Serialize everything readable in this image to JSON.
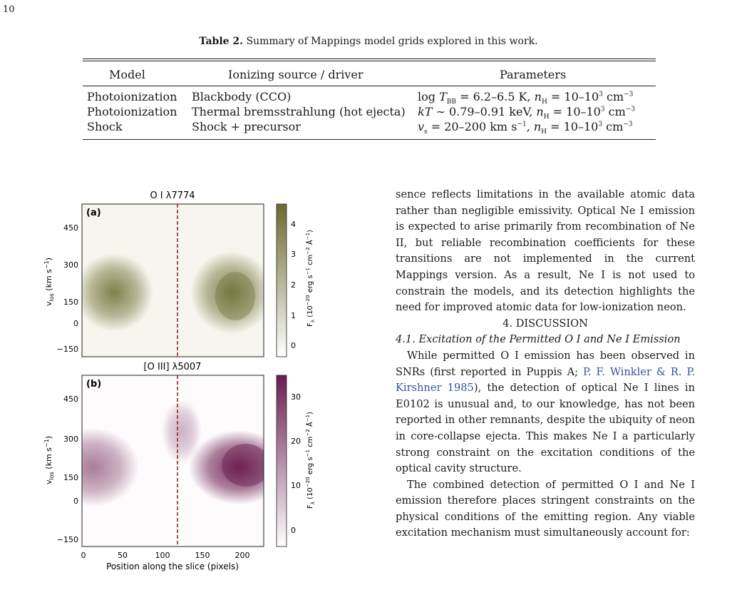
{
  "page_number": "10",
  "table": {
    "caption_label": "Table 2.",
    "caption_text": "Summary of Mappings model grids explored in this work.",
    "headers": [
      "Model",
      "Ionizing source / driver",
      "Parameters"
    ],
    "rows": [
      [
        "Photoionization",
        "Blackbody (CCO)",
        "log T_BB = 6.2–6.5 K, n_H = 10–10^3 cm^−3"
      ],
      [
        "Photoionization",
        "Thermal bremsstrahlung (hot ejecta)",
        "kT ∼ 0.79–0.91 keV, n_H = 10–10^3 cm^−3"
      ],
      [
        "Shock",
        "Shock + precursor",
        "v_s = 20–200 km s^−1, n_H = 10–10^3 cm^−3"
      ]
    ]
  },
  "figure": {
    "panel_a": {
      "title": "O I λ7774",
      "label": "(a)",
      "ylabel": "v_los (km s^-1)",
      "yticks": [
        "450",
        "300",
        "150",
        "0",
        "−150"
      ],
      "cbar_ticks": [
        "4",
        "3",
        "2",
        "1",
        "0"
      ],
      "cbar_label": "F_λ (10^-20 erg s^-1 cm^-2 Å^-1)",
      "color": "#6b6a2e"
    },
    "panel_b": {
      "title": "[O III] λ5007",
      "label": "(b)",
      "ylabel": "v_los (km s^-1)",
      "yticks": [
        "450",
        "300",
        "150",
        "0",
        "−150"
      ],
      "cbar_ticks": [
        "30",
        "20",
        "10",
        "0"
      ],
      "cbar_label": "F_λ (10^-20 erg s^-1 cm^-2 Å^-1)",
      "color": "#6a1d4f"
    },
    "xticks": [
      "0",
      "50",
      "100",
      "150",
      "200"
    ],
    "xlabel": "Position along the slice (pixels)",
    "slice_marker_color": "#8b2a2a"
  },
  "text": {
    "para1": "sence reflects limitations in the available atomic data rather than negligible emissivity. Optical Ne I emission is expected to arise primarily from recombination of Ne II, but reliable recombination coefficients for these transitions are not implemented in the current Mappings version. As a result, Ne I is not used to constrain the models, and its detection highlights the need for improved atomic data for low-ionization neon.",
    "section": "4. DISCUSSION",
    "subsection": "4.1. Excitation of the Permitted O I and Ne I Emission",
    "para2a": "While permitted O I emission has been observed in SNRs (first reported in Puppis A; ",
    "para2cite": "P. F. Winkler & R. P. Kirshner 1985",
    "para2b": "), the detection of optical Ne I lines in E0102 is unusual and, to our knowledge, has not been reported in other remnants, despite the ubiquity of neon in core-collapse ejecta. This makes Ne I a particularly strong constraint on the excitation conditions of the optical cavity structure.",
    "para3": "The combined detection of permitted O I and Ne I emission therefore places stringent constraints on the physical conditions of the emitting region. Any viable excitation mechanism must simultaneously account for:"
  }
}
